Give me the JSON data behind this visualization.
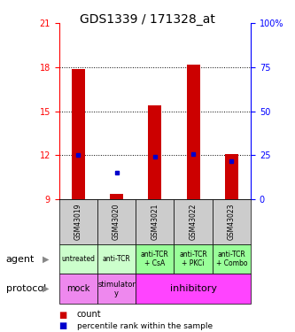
{
  "title": "GDS1339 / 171328_at",
  "samples": [
    "GSM43019",
    "GSM43020",
    "GSM43021",
    "GSM43022",
    "GSM43023"
  ],
  "bar_bottoms": [
    9,
    9,
    9,
    9,
    9
  ],
  "bar_tops": [
    17.9,
    9.35,
    15.4,
    18.2,
    12.1
  ],
  "percentile_vals": [
    12.0,
    10.8,
    11.9,
    12.1,
    11.6
  ],
  "ylim": [
    9,
    21
  ],
  "yticks_left": [
    9,
    12,
    15,
    18,
    21
  ],
  "yticks_right_labels": [
    "0",
    "25",
    "50",
    "75",
    "100%"
  ],
  "ytick_right_positions": [
    9,
    12,
    15,
    18,
    21
  ],
  "gridlines": [
    12,
    15,
    18
  ],
  "bar_color": "#cc0000",
  "percentile_color": "#0000cc",
  "agent_labels": [
    "untreated",
    "anti-TCR",
    "anti-TCR\n+ CsA",
    "anti-TCR\n+ PKCi",
    "anti-TCR\n+ Combo"
  ],
  "agent_colors": [
    "#ccffcc",
    "#ccffcc",
    "#99ff99",
    "#99ff99",
    "#99ff99"
  ],
  "gsm_bg_color": "#cccccc",
  "legend_count_color": "#cc0000",
  "legend_pct_color": "#0000cc",
  "protocol_mock_color": "#ee88ee",
  "protocol_stim_color": "#ee88ee",
  "protocol_inhib_color": "#ff44ff"
}
